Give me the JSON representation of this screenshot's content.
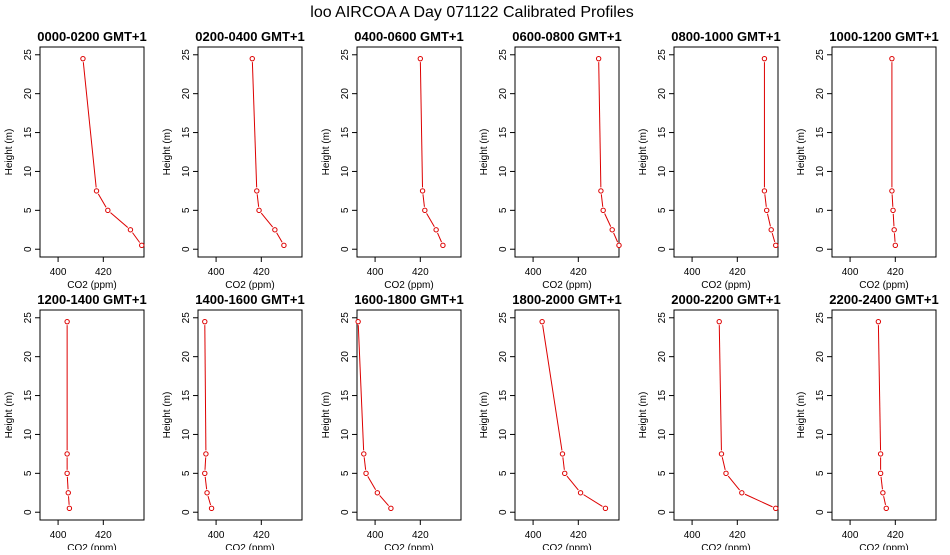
{
  "title": "loo AIRCOA A  Day 071122  Calibrated Profiles",
  "colors": {
    "line": "#dd0000",
    "frame": "#000000",
    "background": "#ffffff"
  },
  "chart_data": [
    {
      "type": "line",
      "title": "0000-0200 GMT+1",
      "xlabel": "CO2 (ppm)",
      "ylabel": "Height (m)",
      "xlim": [
        392,
        438
      ],
      "ylim": [
        -1,
        26
      ],
      "xticks": [
        400,
        420
      ],
      "yticks": [
        0,
        5,
        10,
        15,
        20,
        25
      ],
      "series": [
        {
          "x": [
            437,
            432,
            422,
            417,
            411
          ],
          "y": [
            0.5,
            2.5,
            5,
            7.5,
            24.5
          ]
        }
      ]
    },
    {
      "type": "line",
      "title": "0200-0400 GMT+1",
      "xlabel": "CO2 (ppm)",
      "ylabel": "Height (m)",
      "xlim": [
        392,
        438
      ],
      "ylim": [
        -1,
        26
      ],
      "xticks": [
        400,
        420
      ],
      "yticks": [
        0,
        5,
        10,
        15,
        20,
        25
      ],
      "series": [
        {
          "x": [
            430,
            426,
            419,
            418,
            416
          ],
          "y": [
            0.5,
            2.5,
            5,
            7.5,
            24.5
          ]
        }
      ]
    },
    {
      "type": "line",
      "title": "0400-0600 GMT+1",
      "xlabel": "CO2 (ppm)",
      "ylabel": "Height (m)",
      "xlim": [
        392,
        438
      ],
      "ylim": [
        -1,
        26
      ],
      "xticks": [
        400,
        420
      ],
      "yticks": [
        0,
        5,
        10,
        15,
        20,
        25
      ],
      "series": [
        {
          "x": [
            430,
            427,
            422,
            421,
            420
          ],
          "y": [
            0.5,
            2.5,
            5,
            7.5,
            24.5
          ]
        }
      ]
    },
    {
      "type": "line",
      "title": "0600-0800 GMT+1",
      "xlabel": "CO2 (ppm)",
      "ylabel": "Height (m)",
      "xlim": [
        392,
        438
      ],
      "ylim": [
        -1,
        26
      ],
      "xticks": [
        400,
        420
      ],
      "yticks": [
        0,
        5,
        10,
        15,
        20,
        25
      ],
      "series": [
        {
          "x": [
            438,
            435,
            431,
            430,
            429
          ],
          "y": [
            0.5,
            2.5,
            5,
            7.5,
            24.5
          ]
        }
      ]
    },
    {
      "type": "line",
      "title": "0800-1000 GMT+1",
      "xlabel": "CO2 (ppm)",
      "ylabel": "Height (m)",
      "xlim": [
        392,
        438
      ],
      "ylim": [
        -1,
        26
      ],
      "xticks": [
        400,
        420
      ],
      "yticks": [
        0,
        5,
        10,
        15,
        20,
        25
      ],
      "series": [
        {
          "x": [
            437,
            435,
            433,
            432,
            432
          ],
          "y": [
            0.5,
            2.5,
            5,
            7.5,
            24.5
          ]
        }
      ]
    },
    {
      "type": "line",
      "title": "1000-1200 GMT+1",
      "xlabel": "CO2 (ppm)",
      "ylabel": "Height (m)",
      "xlim": [
        392,
        438
      ],
      "ylim": [
        -1,
        26
      ],
      "xticks": [
        400,
        420
      ],
      "yticks": [
        0,
        5,
        10,
        15,
        20,
        25
      ],
      "series": [
        {
          "x": [
            420,
            419.5,
            419,
            418.5,
            418.5
          ],
          "y": [
            0.5,
            2.5,
            5,
            7.5,
            24.5
          ]
        }
      ]
    },
    {
      "type": "line",
      "title": "1200-1400 GMT+1",
      "xlabel": "CO2 (ppm)",
      "ylabel": "Height (m)",
      "xlim": [
        392,
        438
      ],
      "ylim": [
        -1,
        26
      ],
      "xticks": [
        400,
        420
      ],
      "yticks": [
        0,
        5,
        10,
        15,
        20,
        25
      ],
      "series": [
        {
          "x": [
            405,
            404.5,
            404,
            404,
            404
          ],
          "y": [
            0.5,
            2.5,
            5,
            7.5,
            24.5
          ]
        }
      ]
    },
    {
      "type": "line",
      "title": "1400-1600 GMT+1",
      "xlabel": "CO2 (ppm)",
      "ylabel": "Height (m)",
      "xlim": [
        392,
        438
      ],
      "ylim": [
        -1,
        26
      ],
      "xticks": [
        400,
        420
      ],
      "yticks": [
        0,
        5,
        10,
        15,
        20,
        25
      ],
      "series": [
        {
          "x": [
            398,
            396,
            395,
            395.5,
            395
          ],
          "y": [
            0.5,
            2.5,
            5,
            7.5,
            24.5
          ]
        }
      ]
    },
    {
      "type": "line",
      "title": "1600-1800 GMT+1",
      "xlabel": "CO2 (ppm)",
      "ylabel": "Height (m)",
      "xlim": [
        392,
        438
      ],
      "ylim": [
        -1,
        26
      ],
      "xticks": [
        400,
        420
      ],
      "yticks": [
        0,
        5,
        10,
        15,
        20,
        25
      ],
      "series": [
        {
          "x": [
            407,
            401,
            396,
            395,
            392.5
          ],
          "y": [
            0.5,
            2.5,
            5,
            7.5,
            24.5
          ]
        }
      ]
    },
    {
      "type": "line",
      "title": "1800-2000 GMT+1",
      "xlabel": "CO2 (ppm)",
      "ylabel": "Height (m)",
      "xlim": [
        392,
        438
      ],
      "ylim": [
        -1,
        26
      ],
      "xticks": [
        400,
        420
      ],
      "yticks": [
        0,
        5,
        10,
        15,
        20,
        25
      ],
      "series": [
        {
          "x": [
            432,
            421,
            414,
            413,
            404
          ],
          "y": [
            0.5,
            2.5,
            5,
            7.5,
            24.5
          ]
        }
      ]
    },
    {
      "type": "line",
      "title": "2000-2200 GMT+1",
      "xlabel": "CO2 (ppm)",
      "ylabel": "Height (m)",
      "xlim": [
        392,
        438
      ],
      "ylim": [
        -1,
        26
      ],
      "xticks": [
        400,
        420
      ],
      "yticks": [
        0,
        5,
        10,
        15,
        20,
        25
      ],
      "series": [
        {
          "x": [
            437,
            422,
            415,
            413,
            412
          ],
          "y": [
            0.5,
            2.5,
            5,
            7.5,
            24.5
          ]
        }
      ]
    },
    {
      "type": "line",
      "title": "2200-2400 GMT+1",
      "xlabel": "CO2 (ppm)",
      "ylabel": "Height (m)",
      "xlim": [
        392,
        438
      ],
      "ylim": [
        -1,
        26
      ],
      "xticks": [
        400,
        420
      ],
      "yticks": [
        0,
        5,
        10,
        15,
        20,
        25
      ],
      "series": [
        {
          "x": [
            416,
            414.5,
            413.5,
            413.5,
            412.5
          ],
          "y": [
            0.5,
            2.5,
            5,
            7.5,
            24.5
          ]
        }
      ]
    }
  ]
}
